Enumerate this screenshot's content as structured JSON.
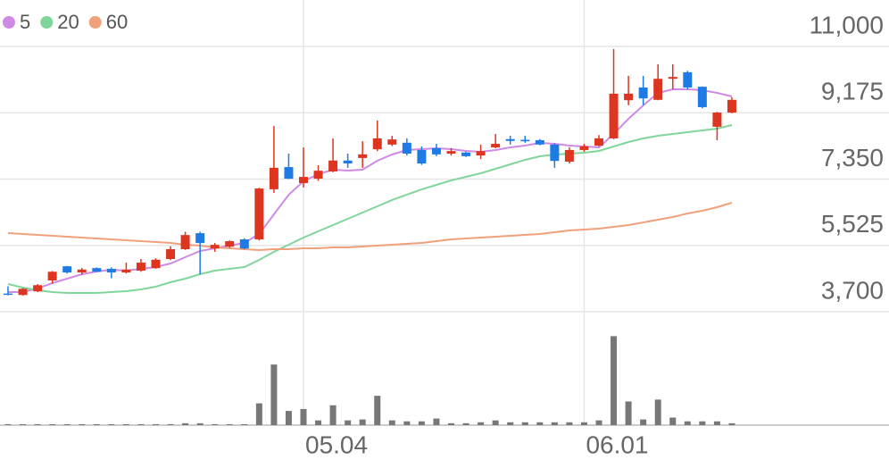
{
  "chart_data": {
    "type": "candlestick",
    "categories": [
      null,
      null,
      null,
      null,
      null,
      null,
      null,
      null,
      null,
      null,
      null,
      null,
      null,
      null,
      null,
      null,
      null,
      null,
      null,
      null,
      "05.04",
      null,
      null,
      null,
      null,
      null,
      null,
      null,
      null,
      null,
      null,
      null,
      null,
      null,
      null,
      null,
      null,
      null,
      null,
      "06.01",
      null,
      null,
      null,
      null,
      null,
      null,
      null,
      null,
      null,
      null
    ],
    "open": [
      4200,
      4160,
      4260,
      4560,
      4950,
      4780,
      4900,
      4880,
      4780,
      4830,
      4900,
      5150,
      5420,
      5860,
      5440,
      5490,
      5690,
      5690,
      7070,
      7680,
      7240,
      7360,
      7560,
      7860,
      7930,
      8170,
      8300,
      8350,
      8150,
      8200,
      8050,
      8080,
      8000,
      8220,
      8450,
      8430,
      8420,
      8300,
      7830,
      8150,
      8270,
      8470,
      9520,
      9870,
      9530,
      10110,
      10290,
      9890,
      8790,
      9180
    ],
    "high": [
      4400,
      4350,
      4460,
      4820,
      4960,
      4900,
      4920,
      4920,
      5050,
      5150,
      5170,
      5500,
      5900,
      5900,
      5590,
      5660,
      5720,
      7110,
      8810,
      8050,
      8220,
      7730,
      8470,
      8050,
      8390,
      8960,
      8540,
      8470,
      8250,
      8320,
      8200,
      8100,
      8300,
      8590,
      8540,
      8540,
      8450,
      8330,
      8220,
      8320,
      8560,
      10930,
      10190,
      10190,
      10510,
      10510,
      10330,
      9900,
      9200,
      9600
    ],
    "low": [
      4150,
      4140,
      4240,
      4470,
      4750,
      4720,
      4790,
      4620,
      4750,
      4800,
      4880,
      5120,
      5400,
      4730,
      5350,
      5460,
      5420,
      5660,
      6970,
      7350,
      7120,
      7300,
      7540,
      7660,
      7660,
      8120,
      8260,
      8000,
      7740,
      7980,
      8000,
      7960,
      7900,
      8200,
      8300,
      8350,
      8280,
      7660,
      7780,
      8100,
      8250,
      8450,
      9380,
      9380,
      9520,
      9820,
      9820,
      9300,
      8420,
      9160
    ],
    "close": [
      4170,
      4330,
      4430,
      4800,
      4780,
      4860,
      4800,
      4780,
      4860,
      5050,
      5130,
      5420,
      5810,
      5590,
      5540,
      5640,
      5440,
      7090,
      7660,
      7360,
      7410,
      7580,
      7860,
      7780,
      8030,
      8470,
      8440,
      8050,
      7780,
      8030,
      8120,
      7980,
      8120,
      8320,
      8400,
      8390,
      8300,
      7850,
      8150,
      8250,
      8470,
      9700,
      9700,
      9570,
      10110,
      10160,
      9870,
      9330,
      9180,
      9530
    ],
    "up_color": "#dd3520",
    "down_color": "#1e7be6",
    "series": [
      {
        "name": "5",
        "color": "#d08ae6",
        "values": [
          4241,
          4241,
          4339,
          4487,
          4609,
          4732,
          4806,
          4855,
          4831,
          4880,
          4929,
          5027,
          5199,
          5371,
          5445,
          5519,
          5593,
          5838,
          6379,
          6920,
          7289,
          7485,
          7608,
          7584,
          7608,
          7854,
          8026,
          8149,
          8174,
          8198,
          8174,
          8124,
          8100,
          8149,
          8223,
          8272,
          8346,
          8321,
          8272,
          8247,
          8223,
          8591,
          9009,
          9378,
          9722,
          9820,
          9820,
          9796,
          9722,
          9624
        ]
      },
      {
        "name": "20",
        "color": "#80d69a",
        "values": [
          4462,
          4364,
          4290,
          4241,
          4216,
          4216,
          4216,
          4241,
          4265,
          4315,
          4388,
          4511,
          4609,
          4732,
          4831,
          4880,
          4929,
          5126,
          5347,
          5544,
          5740,
          5912,
          6084,
          6256,
          6428,
          6600,
          6773,
          6920,
          7067,
          7190,
          7313,
          7412,
          7510,
          7633,
          7756,
          7879,
          7977,
          8026,
          8051,
          8075,
          8124,
          8247,
          8370,
          8469,
          8542,
          8591,
          8641,
          8690,
          8739,
          8837
        ]
      },
      {
        "name": "60",
        "color": "#f0a07a",
        "values": [
          5863,
          5838,
          5814,
          5789,
          5765,
          5740,
          5716,
          5691,
          5666,
          5642,
          5617,
          5593,
          5544,
          5519,
          5470,
          5445,
          5421,
          5396,
          5421,
          5421,
          5445,
          5445,
          5470,
          5470,
          5494,
          5519,
          5544,
          5568,
          5593,
          5642,
          5691,
          5716,
          5740,
          5765,
          5789,
          5814,
          5838,
          5888,
          5937,
          5961,
          5986,
          6035,
          6084,
          6158,
          6232,
          6305,
          6404,
          6478,
          6576,
          6699
        ]
      }
    ],
    "volume": [
      1,
      1,
      1,
      1,
      1,
      1,
      1,
      1,
      1,
      1,
      1,
      1,
      2,
      2,
      1,
      1,
      1,
      23,
      64,
      15,
      17,
      5,
      21,
      5,
      6,
      31,
      5,
      4,
      4,
      7,
      2,
      2,
      3,
      5,
      3,
      3,
      3,
      3,
      3,
      3,
      5,
      94,
      25,
      6,
      27,
      8,
      4,
      4,
      4,
      2
    ],
    "volume_color": "#777777",
    "volume_ylim": [
      0,
      100
    ],
    "ylim": [
      3700,
      11000
    ],
    "yticks": [
      {
        "value": 3700,
        "label": "3,700"
      },
      {
        "value": 5525,
        "label": "5,525"
      },
      {
        "value": 7350,
        "label": "7,350"
      },
      {
        "value": 9175,
        "label": "9,175"
      },
      {
        "value": 11000,
        "label": "11,000"
      }
    ],
    "grid": true
  }
}
